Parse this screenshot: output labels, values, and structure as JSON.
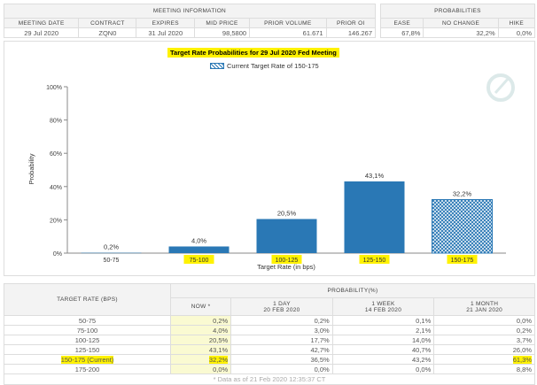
{
  "meeting_info": {
    "title": "MEETING INFORMATION",
    "headers": [
      "MEETING DATE",
      "CONTRACT",
      "EXPIRES",
      "MID PRICE",
      "PRIOR VOLUME",
      "PRIOR OI"
    ],
    "values": [
      "29 Jul 2020",
      "ZQN0",
      "31 Jul 2020",
      "98,5800",
      "61.671",
      "146.267"
    ]
  },
  "probabilities": {
    "title": "PROBABILITIES",
    "headers": [
      "EASE",
      "NO CHANGE",
      "HIKE"
    ],
    "values": [
      "67,8%",
      "32,2%",
      "0,0%"
    ]
  },
  "chart_data": {
    "type": "bar",
    "title": "Target Rate Probabilities for 29 Jul 2020 Fed Meeting",
    "legend": "Current Target Rate of 150-175",
    "xlabel": "Target Rate (in bps)",
    "ylabel": "Probability",
    "ylim": [
      0,
      100
    ],
    "yticks": [
      "0%",
      "20%",
      "40%",
      "60%",
      "80%",
      "100%"
    ],
    "categories": [
      "50-75",
      "75-100",
      "100-125",
      "125-150",
      "150-175"
    ],
    "values": [
      0.2,
      4.0,
      20.5,
      43.1,
      32.2
    ],
    "data_labels": [
      "0,2%",
      "4,0%",
      "20,5%",
      "43,1%",
      "32,2%"
    ],
    "highlighted": [
      "75-100",
      "100-125",
      "125-150",
      "150-175"
    ],
    "current": "150-175",
    "bar_color": "#2a78b5",
    "grid": false
  },
  "rate_table": {
    "col_header": "TARGET RATE (BPS)",
    "group_header": "PROBABILITY(%)",
    "columns": [
      {
        "label": "NOW *",
        "sub": ""
      },
      {
        "label": "1 DAY",
        "sub": "20 FEB 2020"
      },
      {
        "label": "1 WEEK",
        "sub": "14 FEB 2020"
      },
      {
        "label": "1 MONTH",
        "sub": "21 JAN 2020"
      }
    ],
    "rows": [
      [
        "50-75",
        "0,2%",
        "0,2%",
        "0,1%",
        "0,0%"
      ],
      [
        "75-100",
        "4,0%",
        "3,0%",
        "2,1%",
        "0,2%"
      ],
      [
        "100-125",
        "20,5%",
        "17,7%",
        "14,0%",
        "3,7%"
      ],
      [
        "125-150",
        "43,1%",
        "42,7%",
        "40,7%",
        "26,0%"
      ],
      [
        "150-175 (Current)",
        "32,2%",
        "36,5%",
        "43,2%",
        "61,3%"
      ],
      [
        "175-200",
        "0,0%",
        "0,0%",
        "0,0%",
        "8,8%"
      ]
    ],
    "footnote": "* Data as of 21 Feb 2020 12:35:37 CT"
  }
}
